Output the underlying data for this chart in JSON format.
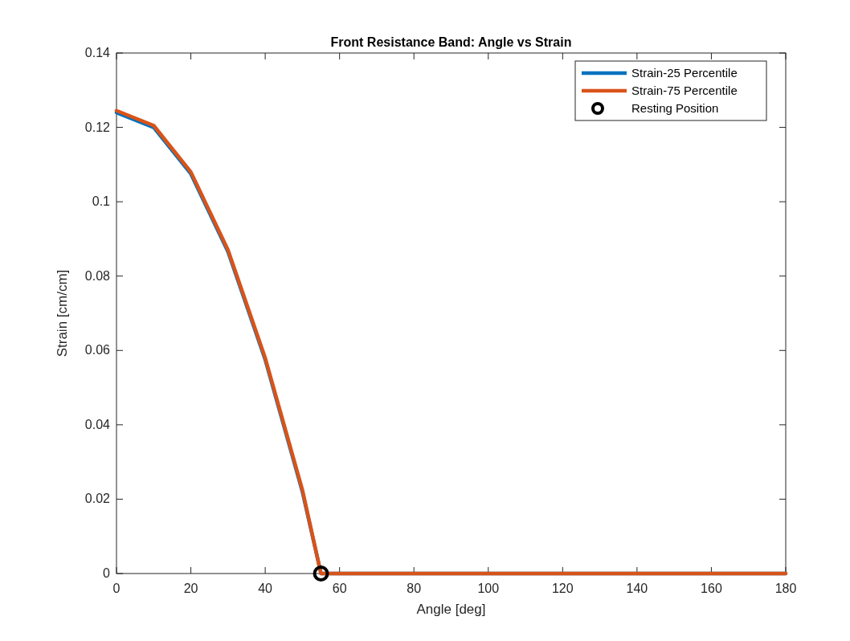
{
  "chart_data": {
    "type": "line",
    "title": "Front Resistance Band: Angle vs Strain",
    "xlabel": "Angle [deg]",
    "ylabel": "Strain [cm/cm]",
    "xlim": [
      0,
      180
    ],
    "xticks": [
      0,
      20,
      40,
      60,
      80,
      100,
      120,
      140,
      160,
      180
    ],
    "ylim": [
      0,
      0.14
    ],
    "yticks": [
      0,
      0.02,
      0.04,
      0.06,
      0.08,
      0.1,
      0.12,
      0.14
    ],
    "grid": false,
    "legend": "top right",
    "marker": "none",
    "series": [
      {
        "name": "Strain-25 Percentile",
        "color": "#0072bd",
        "x": [
          0,
          10,
          20,
          30,
          40,
          50,
          55,
          180
        ],
        "values": [
          0.124,
          0.12,
          0.1075,
          0.0865,
          0.0575,
          0.022,
          0,
          0
        ]
      },
      {
        "name": "Strain-75 Percentile",
        "color": "#d95319",
        "x": [
          0,
          10,
          20,
          30,
          40,
          50,
          55,
          180
        ],
        "values": [
          0.1245,
          0.1205,
          0.108,
          0.087,
          0.058,
          0.0225,
          0,
          0
        ]
      },
      {
        "name": "Resting Position",
        "type": "scatter",
        "marker": "circle",
        "color": "#000000",
        "x": [
          55
        ],
        "values": [
          0
        ]
      }
    ]
  }
}
